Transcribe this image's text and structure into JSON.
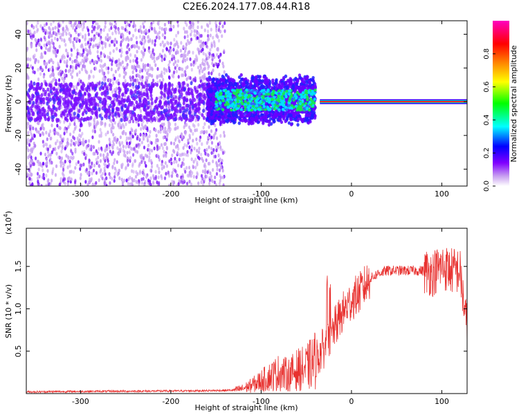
{
  "title": "C2E6.2024.177.08.44.R18",
  "chart_data": [
    {
      "type": "heatmap",
      "name": "spectrogram",
      "xlabel": "Height of straight line (km)",
      "ylabel": "Frequency (Hz)",
      "xlim": [
        -360,
        128
      ],
      "ylim": [
        -50,
        48
      ],
      "x_ticks": [
        -300,
        -200,
        -100,
        0,
        100
      ],
      "y_ticks": [
        -40,
        -20,
        0,
        20,
        40
      ],
      "colorbar": {
        "label": "Normalized spectral amplitude",
        "range": [
          0,
          1
        ],
        "ticks": [
          "0.0",
          "0.2",
          "0.4",
          "0.6",
          "0.8"
        ],
        "colors": [
          "#ffffff",
          "#c8a0f0",
          "#8000ff",
          "#0000ff",
          "#00ffff",
          "#00ff00",
          "#ffff00",
          "#ff8000",
          "#ff0000",
          "#ff00c0"
        ]
      },
      "features": {
        "noise_region_x": [
          -360,
          -140
        ],
        "dense_band_x": [
          -160,
          -40
        ],
        "tone_start_x": -35,
        "tone_freq_hz": 0
      }
    },
    {
      "type": "line",
      "name": "snr",
      "xlabel": "Height of straight line (km)",
      "ylabel": "SNR (10 * v/v)",
      "yscale_label": "(x10",
      "yscale_exp": "4",
      "yscale_close": ")",
      "xlim": [
        -360,
        128
      ],
      "ylim": [
        0,
        1.95
      ],
      "x_ticks": [
        -300,
        -200,
        -100,
        0,
        100
      ],
      "y_ticks": [
        "0.5",
        "1.0",
        "1.5"
      ],
      "y_tick_values": [
        0.5,
        1.0,
        1.5
      ],
      "color": "#e8312f",
      "series": [
        {
          "x": [
            -360,
            -300,
            -200,
            -150,
            -130,
            -120,
            -110,
            -100,
            -90,
            -80,
            -70,
            -60,
            -50,
            -40,
            -30,
            -25,
            -20,
            -10,
            0,
            10,
            20,
            30,
            40,
            60,
            80,
            90,
            100,
            110,
            120,
            128
          ],
          "values": [
            0.02,
            0.025,
            0.03,
            0.035,
            0.04,
            0.06,
            0.1,
            0.15,
            0.2,
            0.25,
            0.22,
            0.28,
            0.3,
            0.4,
            0.55,
            0.6,
            0.75,
            0.95,
            1.1,
            1.2,
            1.35,
            1.42,
            1.45,
            1.45,
            1.45,
            1.42,
            1.5,
            1.45,
            1.45,
            0.75
          ]
        }
      ]
    }
  ]
}
